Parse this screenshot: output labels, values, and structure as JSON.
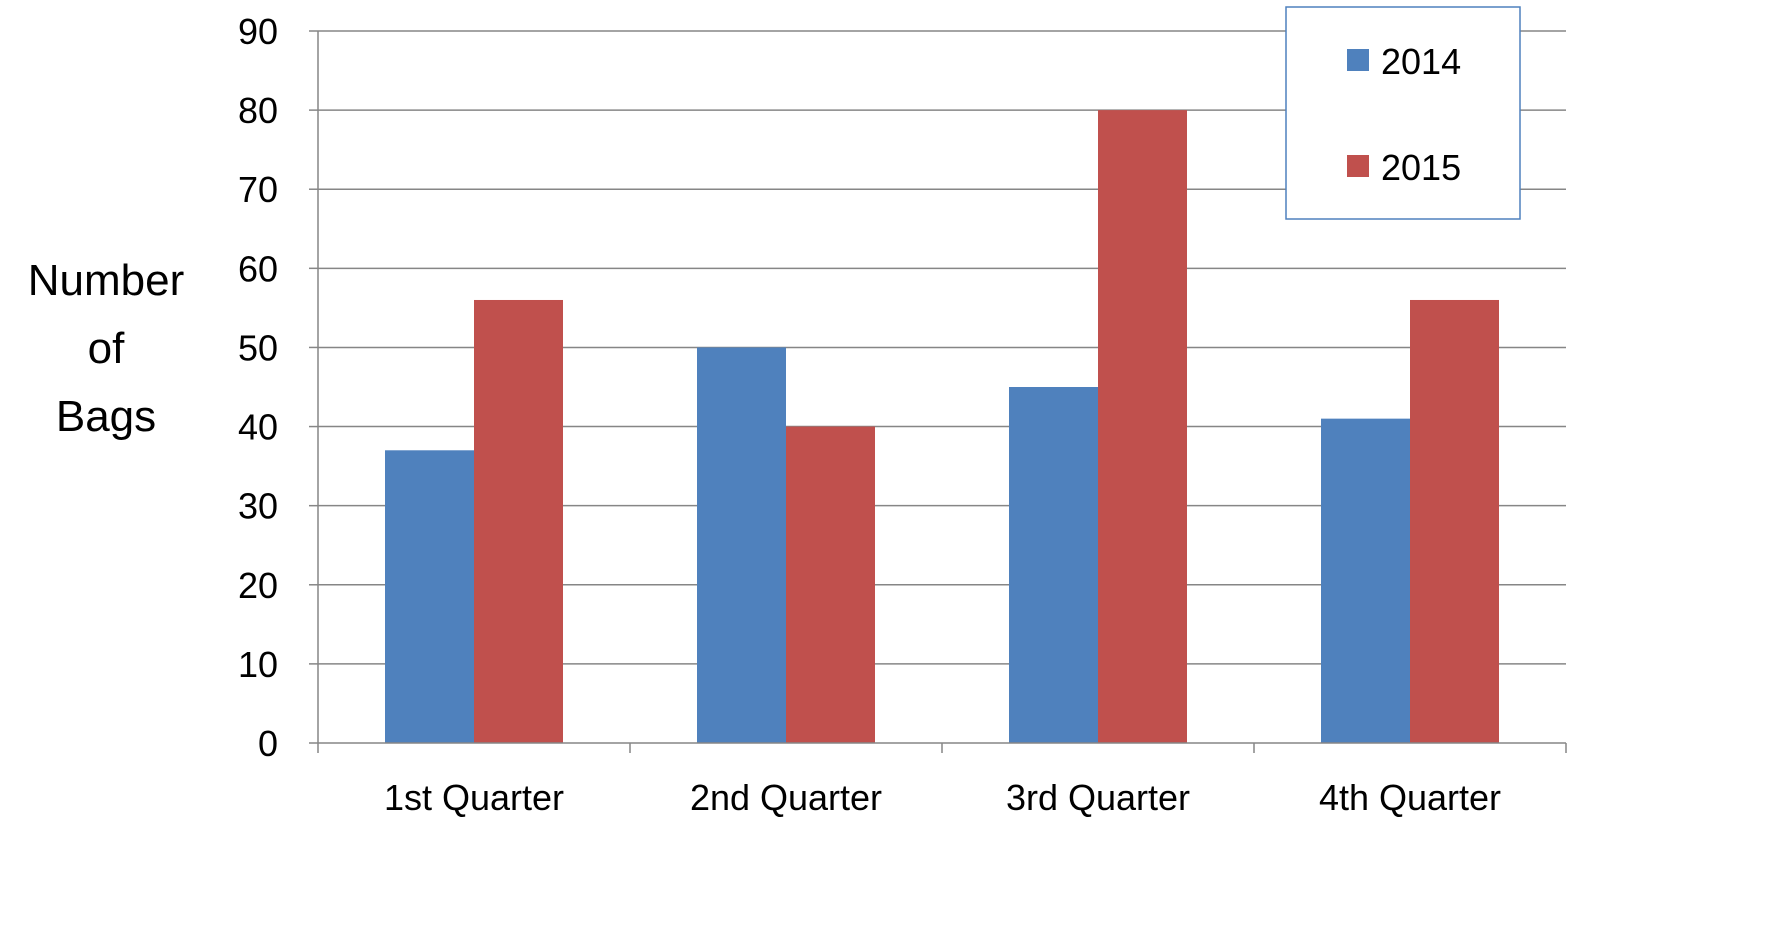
{
  "chart_data": {
    "type": "bar",
    "categories": [
      "1st Quarter",
      "2nd Quarter",
      "3rd Quarter",
      "4th Quarter"
    ],
    "series": [
      {
        "name": "2014",
        "values": [
          37,
          50,
          45,
          41
        ],
        "color": "#4F81BD"
      },
      {
        "name": "2015",
        "values": [
          56,
          40,
          80,
          56
        ],
        "color": "#C0504D"
      }
    ],
    "ylabel_lines": [
      "Number",
      "of",
      "Bags"
    ],
    "xlabel": "",
    "ylim": [
      0,
      90
    ],
    "yticks": [
      0,
      10,
      20,
      30,
      40,
      50,
      60,
      70,
      80,
      90
    ],
    "grid": true,
    "legend_position": "top-right",
    "colors": {
      "gridline": "#868686",
      "axis": "#868686",
      "legend_border": "#4F81BD"
    }
  }
}
